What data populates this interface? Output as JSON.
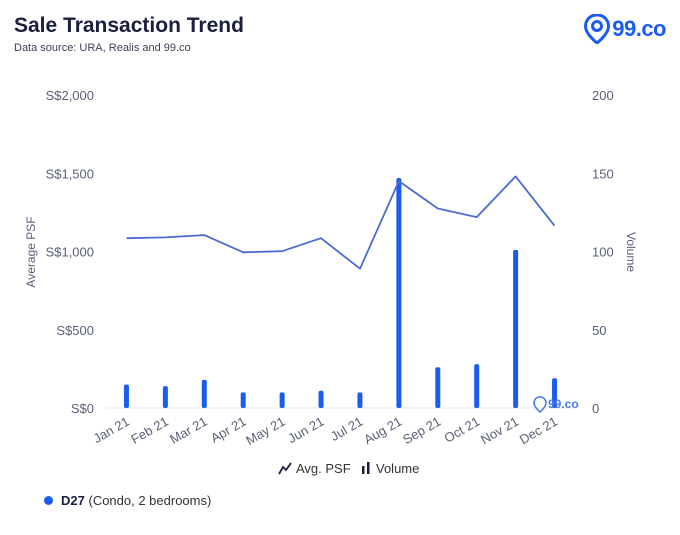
{
  "header": {
    "title": "Sale Transaction Trend",
    "subtitle": "Data source: URA, Realis and 99.co",
    "logo_text": "99.co"
  },
  "footer_legend": {
    "label": "D27",
    "detail": "(Condo, 2 bedrooms)"
  },
  "colors": {
    "line": "#4a6bd1",
    "bar": "#1b5cf0",
    "axis_text": "#5a6078"
  },
  "chart_data": {
    "type": "bar+line",
    "categories": [
      "Jan 21",
      "Feb 21",
      "Mar 21",
      "Apr 21",
      "May 21",
      "Jun 21",
      "Jul 21",
      "Aug 21",
      "Sep 21",
      "Oct 21",
      "Nov 21",
      "Dec 21"
    ],
    "series": [
      {
        "name": "Avg. PSF",
        "type": "line",
        "axis": "left",
        "values": [
          1085,
          1090,
          1105,
          995,
          1002,
          1085,
          890,
          1450,
          1275,
          1220,
          1480,
          1165
        ]
      },
      {
        "name": "Volume",
        "type": "bar",
        "axis": "right",
        "values": [
          15,
          14,
          18,
          10,
          10,
          11,
          10,
          147,
          26,
          28,
          101,
          19
        ]
      }
    ],
    "ylabel_left": "Average PSF",
    "ylabel_right": "Volume",
    "ylim_left": [
      0,
      2000
    ],
    "ylim_right": [
      0,
      200
    ],
    "left_ticks": [
      "S$0",
      "S$500",
      "S$1,000",
      "S$1,500",
      "S$2,000"
    ],
    "right_ticks": [
      "0",
      "50",
      "100",
      "150",
      "200"
    ],
    "legend": [
      "Avg. PSF",
      "Volume"
    ],
    "watermark": "99.co"
  }
}
